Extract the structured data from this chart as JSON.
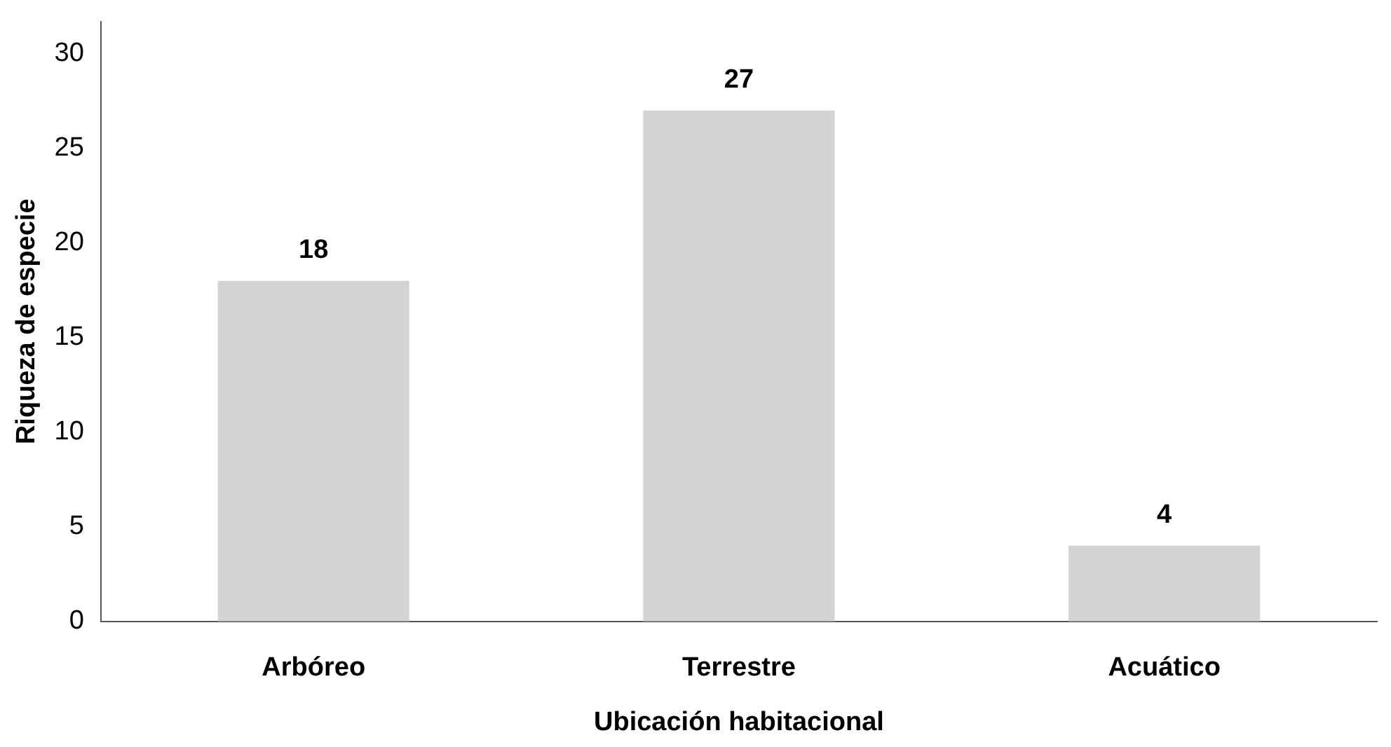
{
  "chart_data": {
    "type": "bar",
    "xlabel": "Ubicación habitacional",
    "ylabel": "Riqueza de especie",
    "categories": [
      "Arbóreo",
      "Terrestre",
      "Acuático"
    ],
    "values": [
      18,
      27,
      4
    ],
    "color": "#d3d3d3",
    "ylim": [
      0,
      31.7
    ],
    "yticks": [
      0,
      5,
      10,
      15,
      20,
      25,
      30
    ],
    "grid": false,
    "legend": false,
    "data_labels": true
  }
}
